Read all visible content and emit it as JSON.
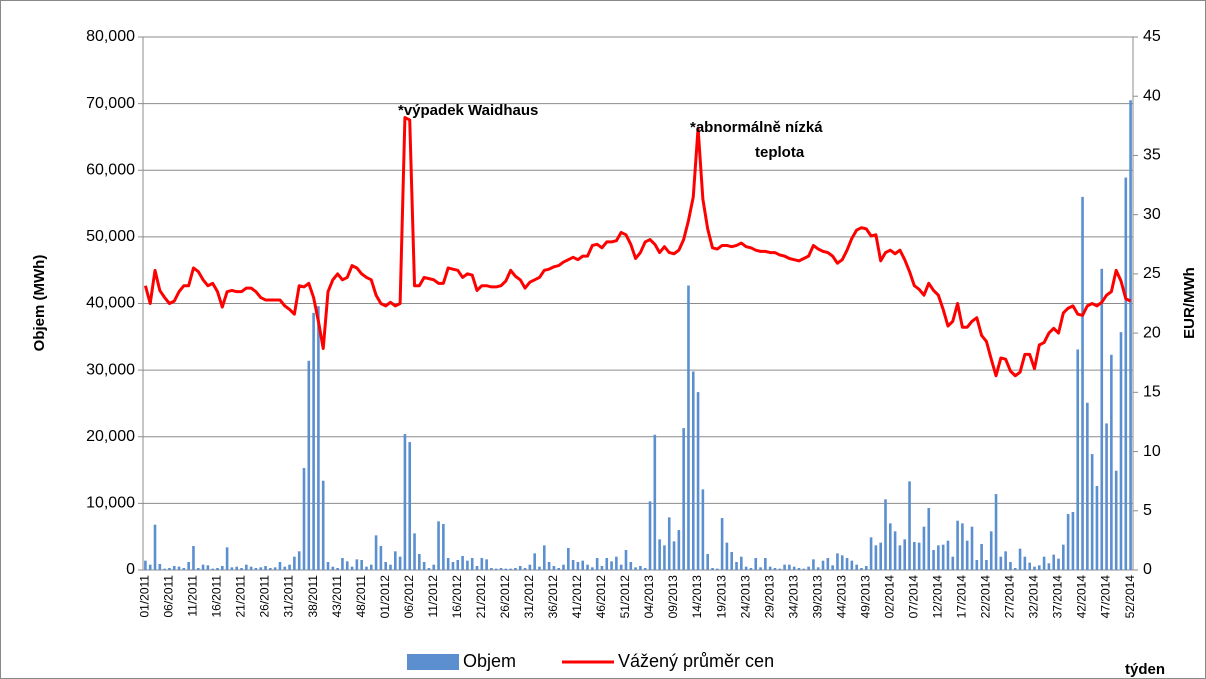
{
  "chart_data": {
    "type": "bar-line",
    "categories": [
      "01/2011",
      null,
      null,
      null,
      null,
      "06/2011",
      null,
      null,
      null,
      null,
      "11/2011",
      null,
      null,
      null,
      null,
      "16/2011",
      null,
      null,
      null,
      null,
      "21/2011",
      null,
      null,
      null,
      null,
      "26/2011",
      null,
      null,
      null,
      null,
      "31/2011",
      null,
      null,
      null,
      null,
      "38/2011",
      null,
      null,
      null,
      null,
      "43/2011",
      null,
      null,
      null,
      null,
      "48/2011",
      null,
      null,
      null,
      null,
      "01/2012",
      null,
      null,
      null,
      null,
      "06/2012",
      null,
      null,
      null,
      null,
      "11/2012",
      null,
      null,
      null,
      null,
      "16/2012",
      null,
      null,
      null,
      null,
      "21/2012",
      null,
      null,
      null,
      null,
      "26/2012",
      null,
      null,
      null,
      null,
      "31/2012",
      null,
      null,
      null,
      null,
      "36/2012",
      null,
      null,
      null,
      null,
      "41/2012",
      null,
      null,
      null,
      null,
      "46/2012",
      null,
      null,
      null,
      null,
      "51/2012",
      null,
      null,
      null,
      null,
      "04/2013",
      null,
      null,
      null,
      null,
      "09/2013",
      null,
      null,
      null,
      null,
      "14/2013",
      null,
      null,
      null,
      null,
      "19/2013",
      null,
      null,
      null,
      null,
      "24/2013",
      null,
      null,
      null,
      null,
      "29/2013",
      null,
      null,
      null,
      null,
      "34/2013",
      null,
      null,
      null,
      null,
      "39/2013",
      null,
      null,
      null,
      null,
      "44/2013",
      null,
      null,
      null,
      null,
      "49/2013",
      null,
      null,
      null,
      null,
      "02/2014",
      null,
      null,
      null,
      null,
      "07/2014",
      null,
      null,
      null,
      null,
      "12/2014",
      null,
      null,
      null,
      null,
      "17/2014",
      null,
      null,
      null,
      null,
      "22/2014",
      null,
      null,
      null,
      null,
      "27/2014",
      null,
      null,
      null,
      null,
      "32/2014",
      null,
      null,
      null,
      null,
      "37/2014",
      null,
      null,
      null,
      null,
      "42/2014",
      null,
      null,
      null,
      null,
      "47/2014",
      null,
      null,
      null,
      null,
      "52/2014"
    ],
    "series": [
      {
        "name": "Objem",
        "kind": "bar",
        "color": "#5b8fd0",
        "values": [
          1400,
          800,
          6800,
          900,
          200,
          300,
          600,
          500,
          300,
          1200,
          3600,
          300,
          800,
          700,
          200,
          300,
          600,
          3400,
          400,
          500,
          300,
          800,
          500,
          300,
          400,
          600,
          300,
          400,
          1200,
          500,
          800,
          2000,
          2800,
          15300,
          31400,
          38600,
          39600,
          13400,
          1200,
          500,
          300,
          1800,
          1300,
          500,
          1600,
          1500,
          500,
          800,
          5200,
          3600,
          1200,
          800,
          2800,
          2000,
          20400,
          19200,
          5500,
          2400,
          1200,
          300,
          800,
          7300,
          6900,
          1800,
          1200,
          1500,
          2100,
          1400,
          1800,
          600,
          1800,
          1600,
          300,
          200,
          300,
          200,
          200,
          300,
          600,
          300,
          800,
          2500,
          500,
          3700,
          1200,
          600,
          300,
          800,
          3300,
          1500,
          1200,
          1400,
          800,
          400,
          1800,
          600,
          1800,
          1300,
          2000,
          800,
          3000,
          1200,
          400,
          600,
          300,
          10300,
          20300,
          4600,
          3700,
          7900,
          4300,
          6000,
          21300,
          42700,
          29800,
          26700,
          12100,
          2400,
          300,
          200,
          7800,
          4100,
          2700,
          1200,
          2000,
          500,
          300,
          1800,
          400,
          1800,
          500,
          300,
          200,
          800,
          800,
          500,
          300,
          200,
          500,
          1600,
          400,
          1400,
          1800,
          700,
          2500,
          2200,
          1800,
          1400,
          800,
          300,
          600,
          4900,
          3700,
          4100,
          10600,
          7000,
          5800,
          3700,
          4600,
          13300,
          4200,
          4100,
          6500,
          9300,
          3000,
          3700,
          3800,
          4400,
          2000,
          7400,
          7000,
          4400,
          6500,
          1500,
          3900,
          1500,
          5800,
          11400,
          2000,
          2800,
          1200,
          300,
          3200,
          2000,
          1100,
          500,
          700,
          2000,
          1000,
          2300,
          1700,
          3800,
          8400,
          8700,
          33100,
          56000,
          25100,
          17400,
          12600,
          45200,
          22000,
          32300,
          14900,
          35700,
          58900,
          70500
        ]
      },
      {
        "name": "Vážený průměr cen",
        "kind": "line",
        "axis": "y2",
        "color": "#ff0000",
        "values": [
          24,
          22.5,
          25.3,
          23.6,
          23,
          22.5,
          22.7,
          23.5,
          24,
          24,
          25.5,
          25.2,
          24.5,
          24,
          24.2,
          23.5,
          22.2,
          23.5,
          23.6,
          23.5,
          23.5,
          23.8,
          23.8,
          23.5,
          23,
          22.8,
          22.8,
          22.8,
          22.8,
          22.3,
          22,
          21.6,
          24,
          23.9,
          24.2,
          23,
          21,
          18.7,
          23.5,
          24.5,
          25,
          24.5,
          24.7,
          25.7,
          25.5,
          25,
          24.7,
          24.5,
          23.2,
          22.5,
          22.3,
          22.6,
          22.3,
          22.5,
          38.2,
          38,
          24,
          24,
          24.7,
          24.6,
          24.5,
          24.2,
          24.2,
          25.5,
          25.4,
          25.3,
          24.7,
          25,
          24.9,
          23.6,
          24,
          24,
          23.9,
          23.9,
          24,
          24.4,
          25.3,
          24.8,
          24.5,
          23.8,
          24.3,
          24.5,
          24.7,
          25.3,
          25.4,
          25.6,
          25.7,
          26,
          26.2,
          26.4,
          26.2,
          26.5,
          26.5,
          27.4,
          27.5,
          27.2,
          27.7,
          27.7,
          27.8,
          28.5,
          28.3,
          27.5,
          26.3,
          26.8,
          27.7,
          27.9,
          27.5,
          26.8,
          27.3,
          26.8,
          26.7,
          27,
          27.9,
          29.5,
          31.5,
          37.3,
          31.3,
          28.8,
          27.2,
          27.1,
          27.4,
          27.4,
          27.3,
          27.4,
          27.6,
          27.3,
          27.2,
          27,
          26.9,
          26.9,
          26.8,
          26.8,
          26.6,
          26.5,
          26.3,
          26.2,
          26.1,
          26.3,
          26.5,
          27.4,
          27.1,
          26.9,
          26.8,
          26.5,
          25.9,
          26.2,
          27,
          28,
          28.7,
          28.9,
          28.8,
          28.2,
          28.3,
          26.1,
          26.8,
          27,
          26.7,
          27,
          26.2,
          25.2,
          24,
          23.7,
          23.2,
          24.2,
          23.6,
          23.2,
          22,
          20.6,
          21,
          22.5,
          20.5,
          20.5,
          21,
          21.3,
          19.8,
          19.3,
          17.8,
          16.4,
          17.9,
          17.8,
          16.8,
          16.4,
          16.7,
          18.2,
          18.2,
          17,
          19,
          19.2,
          20,
          20.4,
          20,
          21.7,
          22.1,
          22.3,
          21.6,
          21.5,
          22.3,
          22.5,
          22.3,
          22.6,
          23.2,
          23.5,
          25.3,
          24.4,
          22.9,
          22.7
        ]
      }
    ],
    "ylabel": "Objem (MWh)",
    "y2label": "EUR/MWh",
    "xlabel": "týden",
    "ylim": [
      0,
      80000
    ],
    "yticks": [
      0,
      {
        "value": 10000,
        "label": "10,000"
      },
      {
        "value": 20000,
        "label": "20,000"
      },
      {
        "value": 30000,
        "label": "30,000"
      },
      {
        "value": 40000,
        "label": "40,000"
      },
      {
        "value": 50000,
        "label": "50,000"
      },
      {
        "value": 60000,
        "label": "60,000"
      },
      {
        "value": 70000,
        "label": "70,000"
      },
      {
        "value": 80000,
        "label": "80,000"
      }
    ],
    "y2lim": [
      0,
      45
    ],
    "y2ticks": [
      0,
      5,
      10,
      15,
      20,
      25,
      30,
      35,
      40,
      45
    ],
    "grid": true,
    "legend": "bottom",
    "annotations": [
      "*výpadek Waidhaus",
      "*abnormálně nízká",
      "teplota"
    ]
  }
}
